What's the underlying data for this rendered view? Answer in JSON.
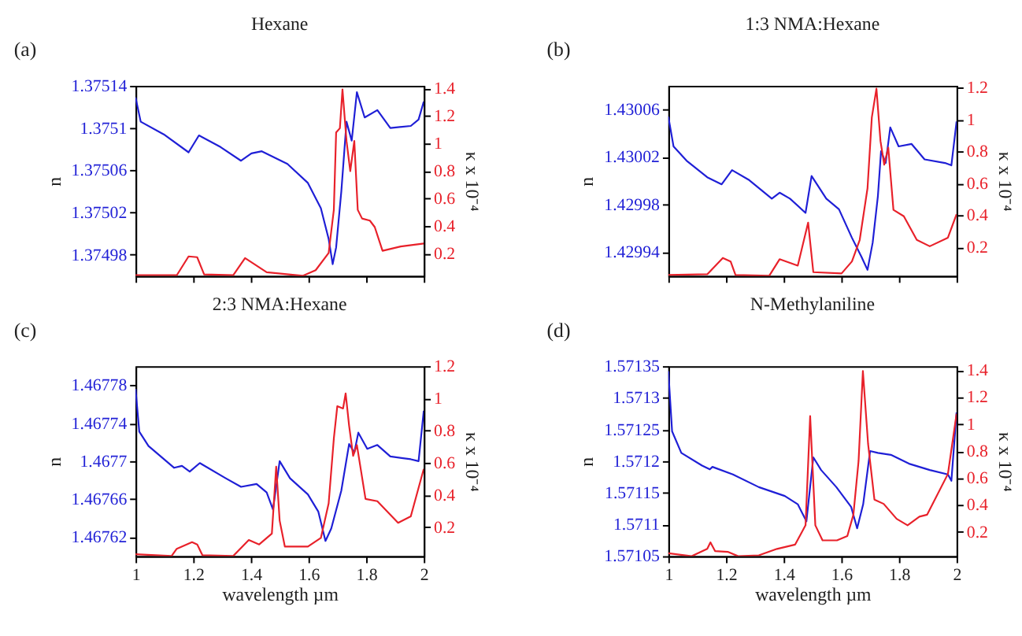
{
  "chart_data": [
    {
      "type": "line",
      "title": "Hexane",
      "ylabel": "n",
      "y2label": "κ x 10⁻⁴",
      "annotations": [
        "(a)"
      ],
      "tick_labels": "y",
      "xlim": [
        1,
        2
      ],
      "xticks": [
        1,
        1.2,
        1.4,
        1.6,
        1.8,
        2
      ],
      "ylim": [
        1.37496,
        1.37514
      ],
      "yticks": [
        1.37498,
        1.37502,
        1.37506,
        1.3751,
        1.37514
      ],
      "y2lim": [
        0.04,
        1.42
      ],
      "y2ticks": [
        0.2,
        0.4,
        0.6,
        0.8,
        1,
        1.2,
        1.4
      ],
      "series": [
        {
          "color": "#1f1fd6",
          "x": [
            1.0,
            1.018,
            1.098,
            1.184,
            1.22,
            1.295,
            1.366,
            1.402,
            1.438,
            1.527,
            1.598,
            1.643,
            1.67,
            1.684,
            1.696,
            1.714,
            1.732,
            1.75,
            1.768,
            1.795,
            1.839,
            1.884,
            1.955,
            1.982,
            2.0
          ],
          "values": [
            1.375129,
            1.375106,
            1.375094,
            1.375077,
            1.375093,
            1.375082,
            1.375069,
            1.375076,
            1.375078,
            1.375066,
            1.375048,
            1.375024,
            1.374995,
            1.374971,
            1.374987,
            1.37504,
            1.375106,
            1.375088,
            1.375134,
            1.37511,
            1.375117,
            1.3751,
            1.375102,
            1.375108,
            1.375125
          ]
        },
        {
          "color": "#e8212a",
          "axis": "y2",
          "x": [
            1.0,
            1.143,
            1.184,
            1.214,
            1.238,
            1.339,
            1.38,
            1.455,
            1.58,
            1.625,
            1.67,
            1.688,
            1.696,
            1.709,
            1.718,
            1.732,
            1.745,
            1.759,
            1.771,
            1.786,
            1.813,
            1.83,
            1.857,
            1.92,
            2.0
          ],
          "values": [
            0.044,
            0.044,
            0.181,
            0.175,
            0.05,
            0.044,
            0.169,
            0.066,
            0.04,
            0.081,
            0.206,
            0.519,
            1.081,
            1.112,
            1.394,
            1.019,
            0.8,
            1.019,
            0.519,
            0.456,
            0.441,
            0.394,
            0.222,
            0.253,
            0.275
          ]
        }
      ]
    },
    {
      "type": "line",
      "title": "1:3 NMA:Hexane",
      "ylabel": "n",
      "y2label": "κ x 10⁻⁴",
      "annotations": [
        "(b)"
      ],
      "tick_labels": "y",
      "xlim": [
        1,
        2
      ],
      "xticks": [
        1,
        1.2,
        1.4,
        1.6,
        1.8,
        2
      ],
      "ylim": [
        1.42992,
        1.43008
      ],
      "yticks": [
        1.42994,
        1.42998,
        1.43002,
        1.43006
      ],
      "y2lim": [
        0.02,
        1.21
      ],
      "y2ticks": [
        0.2,
        0.4,
        0.6,
        0.8,
        1,
        1.2
      ],
      "series": [
        {
          "color": "#1f1fd6",
          "x": [
            1.0,
            1.018,
            1.063,
            1.135,
            1.185,
            1.221,
            1.278,
            1.359,
            1.386,
            1.422,
            1.476,
            1.497,
            1.548,
            1.592,
            1.637,
            1.67,
            1.691,
            1.709,
            1.727,
            1.738,
            1.754,
            1.77,
            1.799,
            1.844,
            1.889,
            1.96,
            1.982,
            2.0
          ],
          "values": [
            1.430054,
            1.430029,
            1.430017,
            1.430003,
            1.429997,
            1.430009,
            1.430001,
            1.429985,
            1.42999,
            1.429985,
            1.429973,
            1.430004,
            1.429985,
            1.429976,
            1.429952,
            1.429936,
            1.429925,
            1.429948,
            1.429987,
            1.430025,
            1.430015,
            1.430045,
            1.430029,
            1.430031,
            1.430018,
            1.430015,
            1.430013,
            1.43005
          ]
        },
        {
          "color": "#e8212a",
          "axis": "y2",
          "x": [
            1.0,
            1.135,
            1.189,
            1.216,
            1.233,
            1.35,
            1.386,
            1.449,
            1.485,
            1.503,
            1.601,
            1.637,
            1.664,
            1.691,
            1.706,
            1.722,
            1.736,
            1.749,
            1.763,
            1.781,
            1.817,
            1.862,
            1.907,
            1.97,
            2.0
          ],
          "values": [
            0.025,
            0.03,
            0.132,
            0.11,
            0.025,
            0.02,
            0.124,
            0.084,
            0.353,
            0.043,
            0.035,
            0.11,
            0.245,
            0.568,
            1.012,
            1.192,
            0.864,
            0.716,
            0.823,
            0.433,
            0.393,
            0.245,
            0.205,
            0.259,
            0.406
          ]
        }
      ]
    },
    {
      "type": "line",
      "title": "2:3 NMA:Hexane",
      "ylabel": "n",
      "y2label": "κ x 10⁻⁴",
      "xlabel": "wavelength  µm",
      "annotations": [
        "(c)"
      ],
      "xlim": [
        1,
        2
      ],
      "xticks": [
        1,
        1.2,
        1.4,
        1.6,
        1.8,
        2
      ],
      "ylim": [
        1.4676,
        1.4678
      ],
      "yticks": [
        1.46762,
        1.46766,
        1.4677,
        1.46774,
        1.46778
      ],
      "y2lim": [
        0.02,
        1.2
      ],
      "y2ticks": [
        0.2,
        0.4,
        0.6,
        0.8,
        1,
        1.2
      ],
      "series": [
        {
          "color": "#1f1fd6",
          "x": [
            1.0,
            1.013,
            1.045,
            1.134,
            1.161,
            1.188,
            1.223,
            1.313,
            1.366,
            1.42,
            1.455,
            1.477,
            1.5,
            1.536,
            1.598,
            1.634,
            1.659,
            1.679,
            1.714,
            1.741,
            1.759,
            1.773,
            1.804,
            1.839,
            1.884,
            1.955,
            1.982,
            2.0
          ],
          "values": [
            1.467776,
            1.467731,
            1.467716,
            1.467693,
            1.467695,
            1.467689,
            1.467698,
            1.467682,
            1.467673,
            1.467676,
            1.467667,
            1.467649,
            1.4677,
            1.467682,
            1.467665,
            1.467647,
            1.467616,
            1.467629,
            1.467669,
            1.467718,
            1.467709,
            1.46773,
            1.467713,
            1.467717,
            1.467705,
            1.467702,
            1.4677,
            1.467753
          ]
        },
        {
          "color": "#e8212a",
          "axis": "y2",
          "x": [
            1.0,
            1.125,
            1.143,
            1.196,
            1.214,
            1.232,
            1.339,
            1.393,
            1.429,
            1.473,
            1.488,
            1.5,
            1.518,
            1.598,
            1.643,
            1.67,
            1.688,
            1.7,
            1.72,
            1.729,
            1.741,
            1.755,
            1.768,
            1.798,
            1.839,
            1.911,
            1.955,
            2.0
          ],
          "values": [
            0.032,
            0.021,
            0.066,
            0.107,
            0.093,
            0.026,
            0.021,
            0.12,
            0.093,
            0.16,
            0.576,
            0.241,
            0.08,
            0.08,
            0.133,
            0.348,
            0.75,
            0.951,
            0.937,
            1.031,
            0.83,
            0.643,
            0.71,
            0.375,
            0.361,
            0.227,
            0.267,
            0.562
          ]
        }
      ]
    },
    {
      "type": "line",
      "title": "N-Methylaniline",
      "ylabel": "n",
      "y2label": "κ x 10⁻⁴",
      "xlabel": "wavelength  µm",
      "annotations": [
        "(d)"
      ],
      "xlim": [
        1,
        2
      ],
      "xticks": [
        1,
        1.2,
        1.4,
        1.6,
        1.8,
        2
      ],
      "ylim": [
        1.57105,
        1.57135
      ],
      "yticks": [
        1.57105,
        1.5711,
        1.57115,
        1.5712,
        1.57125,
        1.5713,
        1.57135
      ],
      "y2lim": [
        0.02,
        1.43
      ],
      "y2ticks": [
        0.2,
        0.4,
        0.6,
        0.8,
        1,
        1.2,
        1.4
      ],
      "series": [
        {
          "color": "#1f1fd6",
          "x": [
            1.0,
            1.013,
            1.045,
            1.117,
            1.144,
            1.153,
            1.224,
            1.314,
            1.404,
            1.449,
            1.479,
            1.503,
            1.53,
            1.583,
            1.634,
            1.655,
            1.676,
            1.7,
            1.727,
            1.772,
            1.835,
            1.907,
            1.97,
            1.982,
            2.0
          ],
          "values": [
            1.571342,
            1.571247,
            1.571213,
            1.571193,
            1.571187,
            1.571191,
            1.571179,
            1.571159,
            1.571145,
            1.571132,
            1.571105,
            1.571206,
            1.571186,
            1.571159,
            1.571128,
            1.571094,
            1.571132,
            1.571216,
            1.571213,
            1.57121,
            1.571196,
            1.571186,
            1.571179,
            1.571169,
            1.571277
          ]
        },
        {
          "color": "#e8212a",
          "axis": "y2",
          "x": [
            1.0,
            1.081,
            1.135,
            1.146,
            1.162,
            1.206,
            1.242,
            1.314,
            1.377,
            1.44,
            1.476,
            1.492,
            1.51,
            1.535,
            1.585,
            1.621,
            1.642,
            1.66,
            1.675,
            1.693,
            1.715,
            1.747,
            1.792,
            1.83,
            1.871,
            1.898,
            1.97,
            2.0
          ],
          "values": [
            0.042,
            0.02,
            0.074,
            0.122,
            0.058,
            0.052,
            0.02,
            0.026,
            0.074,
            0.106,
            0.249,
            1.06,
            0.249,
            0.137,
            0.137,
            0.169,
            0.328,
            0.726,
            1.394,
            0.853,
            0.44,
            0.408,
            0.297,
            0.249,
            0.313,
            0.328,
            0.63,
            1.076
          ]
        }
      ]
    }
  ]
}
